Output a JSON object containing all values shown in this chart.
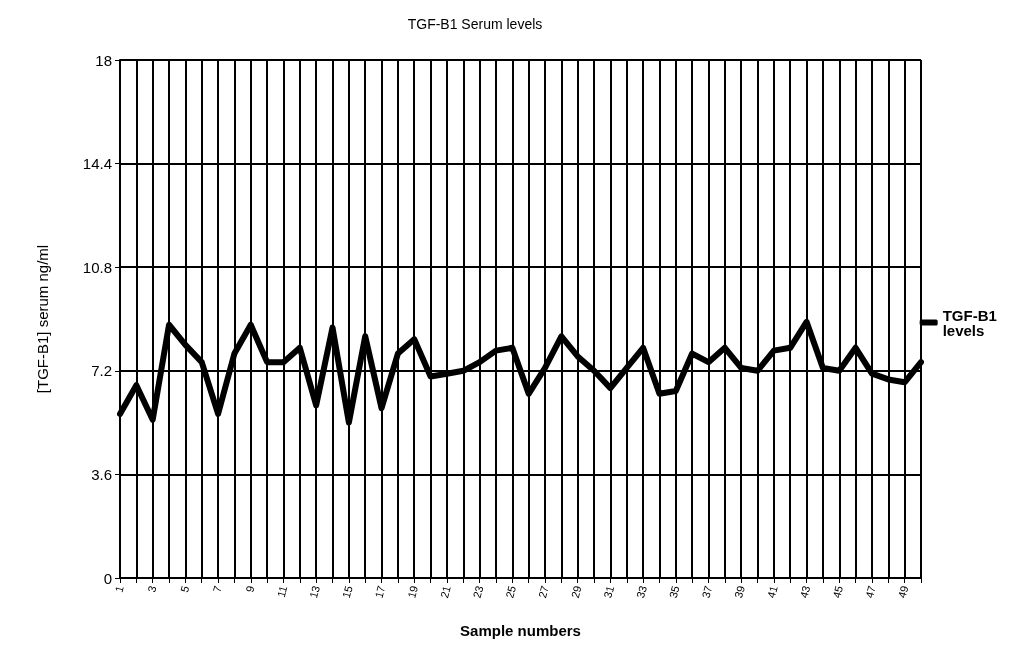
{
  "chart_data": {
    "type": "line",
    "title": "TGF-B1 Serum levels",
    "xlabel": "Sample numbers",
    "ylabel": "[TGF-B1] serum ng/ml",
    "categories": [
      "1",
      null,
      "3",
      null,
      "5",
      null,
      "7",
      null,
      "9",
      null,
      "11",
      null,
      "13",
      null,
      "15",
      null,
      "17",
      null,
      "19",
      null,
      "21",
      null,
      "23",
      null,
      "25",
      null,
      "27",
      null,
      "29",
      null,
      "31",
      null,
      "33",
      null,
      "35",
      null,
      "37",
      null,
      "39",
      null,
      "41",
      null,
      "43",
      null,
      "45",
      null,
      "47",
      null,
      "49",
      null
    ],
    "series": [
      {
        "name": "TGF-B1 levels",
        "color": "#000000",
        "values": [
          5.7,
          6.7,
          5.5,
          8.8,
          8.1,
          7.5,
          5.7,
          7.8,
          8.8,
          7.5,
          7.5,
          8.0,
          6.0,
          8.7,
          5.4,
          8.4,
          5.9,
          7.8,
          8.3,
          7.0,
          7.1,
          7.2,
          7.5,
          7.9,
          8.0,
          6.4,
          7.3,
          8.4,
          7.7,
          7.2,
          6.6,
          7.3,
          8.0,
          6.4,
          6.5,
          7.8,
          7.5,
          8.0,
          7.3,
          7.2,
          7.9,
          8.0,
          8.9,
          7.3,
          7.2,
          8.0,
          7.1,
          6.9,
          6.8,
          7.5
        ]
      }
    ],
    "ylim": [
      0,
      18
    ],
    "yticks": [
      0,
      3.6,
      7.2,
      10.8,
      14.4,
      18
    ],
    "grid": true,
    "legend": "right",
    "marker": "none",
    "line_style": "solid"
  }
}
